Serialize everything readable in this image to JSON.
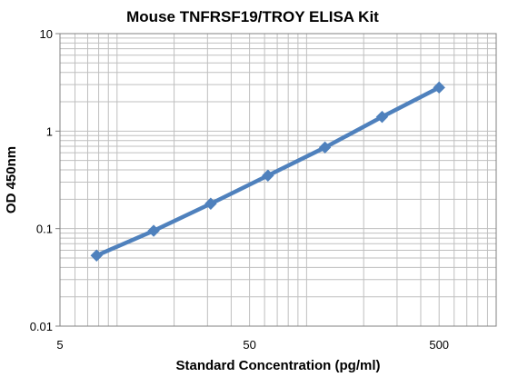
{
  "chart_data": {
    "type": "line",
    "title": "Mouse TNFRSF19/TROY ELISA Kit",
    "xlabel": "Standard Concentration (pg/ml)",
    "ylabel": "OD 450nm",
    "x_scale": "log",
    "y_scale": "log",
    "xlim": [
      5,
      1000
    ],
    "ylim": [
      0.01,
      10
    ],
    "x_ticks": [
      5,
      50,
      500
    ],
    "x_tick_labels": [
      "5",
      "50",
      "500"
    ],
    "y_ticks": [
      0.01,
      0.1,
      1,
      10
    ],
    "y_tick_labels": [
      "0.01",
      "0.1",
      "1",
      "10"
    ],
    "grid": true,
    "legend": "none",
    "series": [
      {
        "color": "#4f81bd",
        "marker": "diamond",
        "x": [
          7.8,
          15.6,
          31.2,
          62.5,
          125,
          250,
          500
        ],
        "y": [
          0.053,
          0.095,
          0.18,
          0.35,
          0.68,
          1.4,
          2.8
        ]
      }
    ],
    "colors": {
      "line": "#4f81bd",
      "grid": "#bfbfbf",
      "axis": "#808080"
    }
  }
}
